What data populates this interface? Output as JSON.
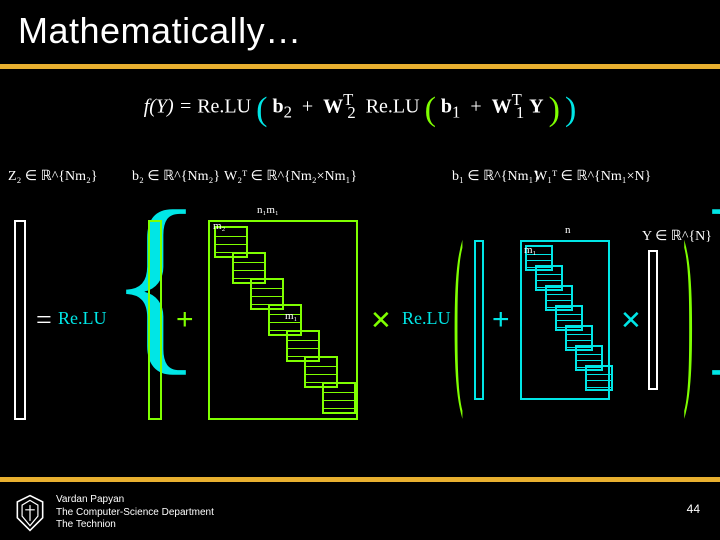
{
  "title": "Mathematically…",
  "accent": "#e8b030",
  "equation": {
    "lhs": "f(Y) =",
    "relu": "Re.LU",
    "b2": "b",
    "b2s": "2",
    "w2": "W",
    "w2sup": "T",
    "w2sub": "2",
    "b1": "b",
    "b1s": "1",
    "w1": "W",
    "w1sup": "T",
    "w1sub": "1",
    "Y": "Y"
  },
  "labels": {
    "z2": "Z₂ ∈ ℝ^{Nm₂}",
    "b2": "b₂ ∈ ℝ^{Nm₂}",
    "w2": "W₂ᵀ ∈ ℝ^{Nm₂×Nm₁}",
    "b1": "b₁ ∈ ℝ^{Nm₁}",
    "w1": "W₁ᵀ ∈ ℝ^{Nm₁×N}",
    "y": "Y ∈ ℝ^{N}"
  },
  "dims": {
    "n1m1": "n₁m₁",
    "m2": "m₂",
    "m1": "m₁",
    "n": "n",
    "m1b": "m₁"
  },
  "relu_text": "Re.LU",
  "ops": {
    "eq": "=",
    "plus": "+",
    "mult": "✕"
  },
  "colors": {
    "cyan": "#00e6e6",
    "green": "#7fff00",
    "white": "#ffffff",
    "bg": "#000000",
    "accent": "#e8b030"
  },
  "staircase_w2": {
    "blocks": 7,
    "block_w": 34,
    "block_h": 32,
    "step_x": 18,
    "step_y": 26,
    "inner_rows": 4
  },
  "staircase_w1": {
    "blocks": 7,
    "block_w": 28,
    "block_h": 26,
    "step_x": 10,
    "step_y": 20,
    "inner_rows": 4
  },
  "footer": {
    "author": "Vardan Papyan",
    "dept": "The Computer-Science Department",
    "inst": "The Technion",
    "page": "44"
  }
}
